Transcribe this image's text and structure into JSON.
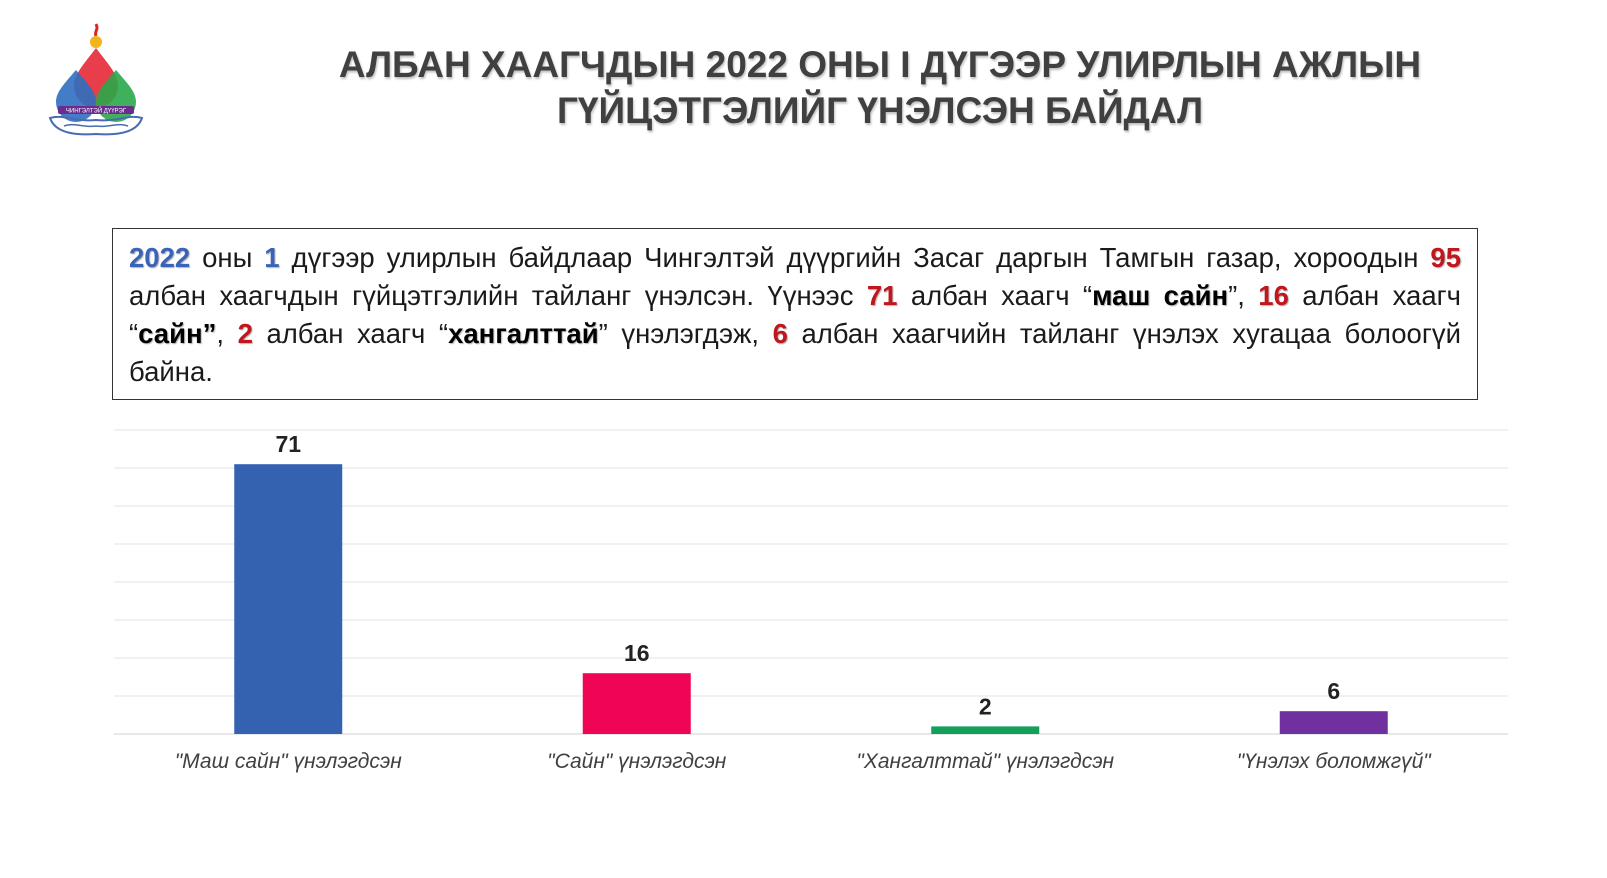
{
  "title": {
    "line1": "АЛБАН ХААГЧДЫН 2022 ОНЫ I ДҮГЭЭР УЛИРЛЫН АЖЛЫН",
    "line2": "ГҮЙЦЭТГЭЛИЙГ ҮНЭЛСЭН БАЙДАЛ"
  },
  "logo": {
    "icon": "chingeltei-district-logo-icon",
    "text": "ЧИНГЭЛТЭЙ ДҮҮРЭГ"
  },
  "summary": {
    "year": "2022",
    "t1": " оны ",
    "quarter": "1",
    "t2": " дүгээр улирлын байдлаар Чингэлтэй дүүргийн Засаг даргын Тамгын газар, хороодын ",
    "total": "95",
    "t3": " албан хаагчдын гүйцэтгэлийн тайланг үнэлсэн. Үүнээс ",
    "n_excellent": "71",
    "t4": " албан хаагч “",
    "excellent_word": "маш сайн",
    "t5": "”, ",
    "n_good": "16",
    "t6": " албан хаагч “",
    "good_word": "сайн”",
    "t7": ", ",
    "n_satisfactory": "2",
    "t8": " албан хаагч “",
    "satisfactory_word": "хангалттай",
    "t9": "” үнэлэгдэж, ",
    "n_none": "6",
    "t10": " албан хаагчийн тайланг үнэлэх хугацаа болоогүй байна."
  },
  "colors": {
    "highlight_blue": "#3b63b8",
    "highlight_red": "#c0161d",
    "gridline": "#e3e3e3"
  },
  "chart_data": {
    "type": "bar",
    "title": "",
    "xlabel": "",
    "ylabel": "",
    "ylim": [
      0,
      80
    ],
    "grid": true,
    "categories": [
      "\"Маш сайн\" үнэлэгдсэн",
      "\"Сайн\" үнэлэгдсэн",
      "\"Хангалттай\" үнэлэгдсэн",
      "\"Үнэлэх боломжгүй\""
    ],
    "values": [
      71,
      16,
      2,
      6
    ],
    "data_labels": [
      "71",
      "16",
      "2",
      "6"
    ],
    "colors": [
      "#3462b0",
      "#f00456",
      "#12a05a",
      "#7030a0"
    ]
  }
}
